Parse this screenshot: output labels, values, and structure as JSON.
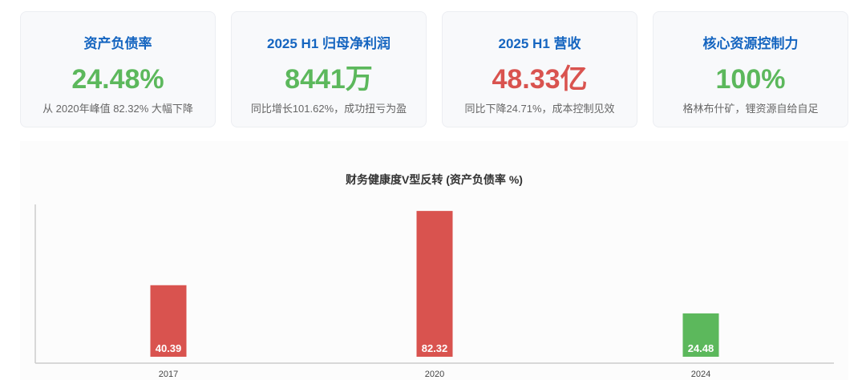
{
  "cards": [
    {
      "title": "资产负债率",
      "value": "24.48%",
      "subtitle": "从 2020年峰值 82.32% 大幅下降",
      "color": "#5cb85c"
    },
    {
      "title": "2025 H1 归母净利润",
      "value": "8441万",
      "subtitle": "同比增长101.62%，成功扭亏为盈",
      "color": "#5cb85c"
    },
    {
      "title": "2025 H1 营收",
      "value": "48.33亿",
      "subtitle": "同比下降24.71%，成本控制见效",
      "color": "#d9534f"
    },
    {
      "title": "核心资源控制力",
      "value": "100%",
      "subtitle": "格林布什矿，锂资源自给自足",
      "color": "#5cb85c"
    }
  ],
  "chart_data": {
    "type": "bar",
    "title": "财务健康度V型反转 (资产负债率 %)",
    "categories": [
      "2017",
      "2020",
      "2024"
    ],
    "values": [
      40.39,
      82.32,
      24.48
    ],
    "data_labels": [
      "40.39",
      "82.32",
      "24.48"
    ],
    "colors": [
      "#d9534f",
      "#d9534f",
      "#5cb85c"
    ],
    "ylim": [
      0,
      86
    ],
    "grid": false,
    "legend": "none"
  }
}
